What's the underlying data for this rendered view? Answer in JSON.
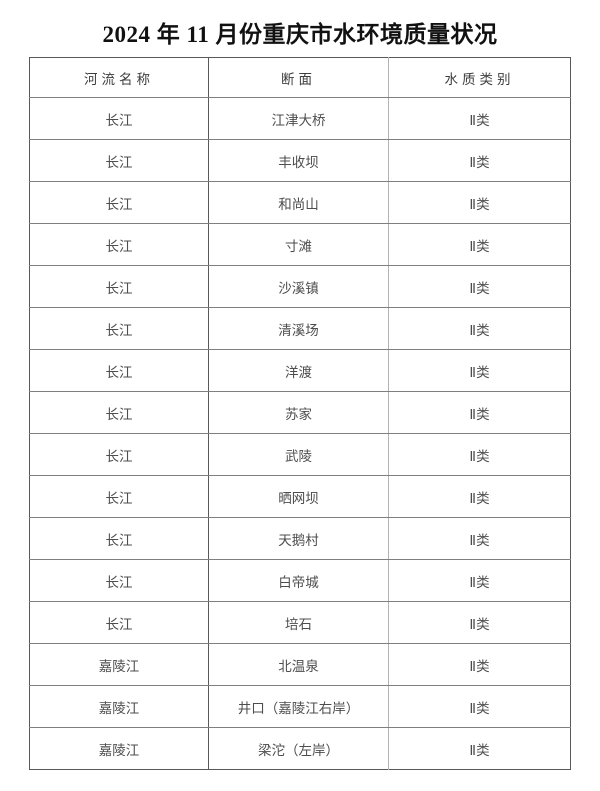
{
  "page": {
    "title": "2024 年 11 月份重庆市水环境质量状况"
  },
  "table": {
    "columns": [
      "河流名称",
      "断面",
      "水质类别"
    ],
    "rows": [
      {
        "river": "长江",
        "section": "江津大桥",
        "category": "Ⅱ类"
      },
      {
        "river": "长江",
        "section": "丰收坝",
        "category": "Ⅱ类"
      },
      {
        "river": "长江",
        "section": "和尚山",
        "category": "Ⅱ类"
      },
      {
        "river": "长江",
        "section": "寸滩",
        "category": "Ⅱ类"
      },
      {
        "river": "长江",
        "section": "沙溪镇",
        "category": "Ⅱ类"
      },
      {
        "river": "长江",
        "section": "清溪场",
        "category": "Ⅱ类"
      },
      {
        "river": "长江",
        "section": "洋渡",
        "category": "Ⅱ类"
      },
      {
        "river": "长江",
        "section": "苏家",
        "category": "Ⅱ类"
      },
      {
        "river": "长江",
        "section": "武陵",
        "category": "Ⅱ类"
      },
      {
        "river": "长江",
        "section": "晒网坝",
        "category": "Ⅱ类"
      },
      {
        "river": "长江",
        "section": "天鹅村",
        "category": "Ⅱ类"
      },
      {
        "river": "长江",
        "section": "白帝城",
        "category": "Ⅱ类"
      },
      {
        "river": "长江",
        "section": "培石",
        "category": "Ⅱ类"
      },
      {
        "river": "嘉陵江",
        "section": "北温泉",
        "category": "Ⅱ类"
      },
      {
        "river": "嘉陵江",
        "section": "井口（嘉陵江右岸）",
        "category": "Ⅱ类"
      },
      {
        "river": "嘉陵江",
        "section": "梁沱（左岸）",
        "category": "Ⅱ类"
      }
    ]
  },
  "colors": {
    "background": "#ffffff",
    "title_text": "#111111",
    "header_text": "#3d3d3d",
    "body_text": "#4d4d4d",
    "outer_border": "#595959",
    "row_line": "#7f7f7f",
    "divider_light": "#b3b3b3"
  }
}
